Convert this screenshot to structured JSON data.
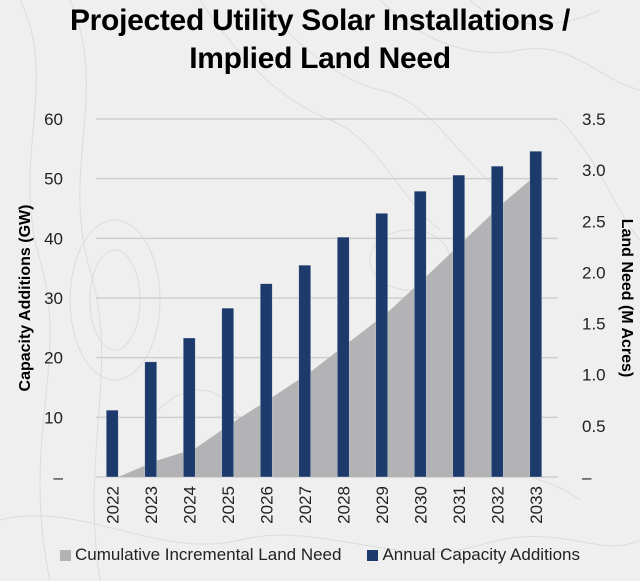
{
  "chart_data": {
    "type": "bar",
    "title": "Projected Utility Solar Installations / Implied Land Need",
    "title_lines": [
      "Projected Utility Solar Installations /",
      "Implied Land Need"
    ],
    "categories": [
      "2022",
      "2023",
      "2024",
      "2025",
      "2026",
      "2027",
      "2028",
      "2029",
      "2030",
      "2031",
      "2032",
      "2033"
    ],
    "series": [
      {
        "name": "Cumulative Incremental Land Need",
        "type": "area",
        "axis": "right",
        "color": "#b3b3b5",
        "values": [
          0,
          0.16,
          0.28,
          0.54,
          0.78,
          1.03,
          1.32,
          1.61,
          1.96,
          2.32,
          2.68,
          3.0
        ]
      },
      {
        "name": "Annual Capacity Additions",
        "type": "bar",
        "axis": "left",
        "color": "#1c3a6b",
        "values": [
          11.2,
          19.3,
          23.3,
          28.3,
          32.4,
          35.5,
          40.2,
          44.2,
          47.9,
          50.6,
          52.1,
          54.6
        ]
      }
    ],
    "ylabel": "Capacity Additions (GW)",
    "y2label": "Land Need (M Acres)",
    "xlabel": "",
    "ylim": [
      0,
      60
    ],
    "y2lim": [
      0,
      3.5
    ],
    "yticks": [
      "–",
      "10",
      "20",
      "30",
      "40",
      "50",
      "60"
    ],
    "y2ticks": [
      "–",
      "0.5",
      "1.0",
      "1.5",
      "2.0",
      "2.5",
      "3.0",
      "3.5"
    ],
    "grid": true,
    "legend": "bottom"
  }
}
